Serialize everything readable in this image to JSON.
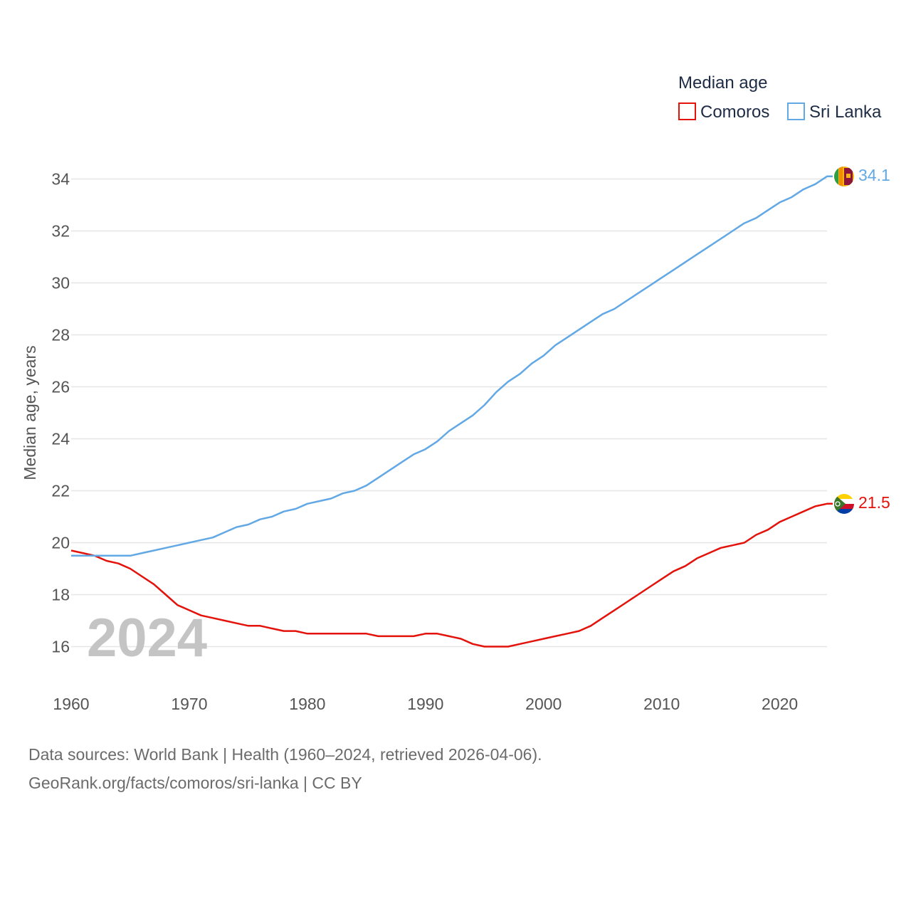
{
  "chart_data": {
    "type": "line",
    "title": "Median age",
    "ylabel": "Median age, years",
    "xlabel": "",
    "xlim": [
      1960,
      2024
    ],
    "ylim": [
      15,
      35
    ],
    "y_ticks": [
      16,
      18,
      20,
      22,
      24,
      26,
      28,
      30,
      32,
      34
    ],
    "x_ticks": [
      1960,
      1970,
      1980,
      1990,
      2000,
      2010,
      2020
    ],
    "grid": true,
    "legend_position": "top-right",
    "current_year_label": "2024",
    "x": [
      1960,
      1961,
      1962,
      1963,
      1964,
      1965,
      1966,
      1967,
      1968,
      1969,
      1970,
      1971,
      1972,
      1973,
      1974,
      1975,
      1976,
      1977,
      1978,
      1979,
      1980,
      1981,
      1982,
      1983,
      1984,
      1985,
      1986,
      1987,
      1988,
      1989,
      1990,
      1991,
      1992,
      1993,
      1994,
      1995,
      1996,
      1997,
      1998,
      1999,
      2000,
      2001,
      2002,
      2003,
      2004,
      2005,
      2006,
      2007,
      2008,
      2009,
      2010,
      2011,
      2012,
      2013,
      2014,
      2015,
      2016,
      2017,
      2018,
      2019,
      2020,
      2021,
      2022,
      2023,
      2024
    ],
    "series": [
      {
        "name": "Comoros",
        "color": "#e3120b",
        "end_label": "21.5",
        "flag": "comoros-flag",
        "values": [
          19.7,
          19.6,
          19.5,
          19.3,
          19.2,
          19.0,
          18.7,
          18.4,
          18.0,
          17.6,
          17.4,
          17.2,
          17.1,
          17.0,
          16.9,
          16.8,
          16.8,
          16.7,
          16.6,
          16.6,
          16.5,
          16.5,
          16.5,
          16.5,
          16.5,
          16.5,
          16.4,
          16.4,
          16.4,
          16.4,
          16.5,
          16.5,
          16.4,
          16.3,
          16.1,
          16.0,
          16.0,
          16.0,
          16.1,
          16.2,
          16.3,
          16.4,
          16.5,
          16.6,
          16.8,
          17.1,
          17.4,
          17.7,
          18.0,
          18.3,
          18.6,
          18.9,
          19.1,
          19.4,
          19.6,
          19.8,
          19.9,
          20.0,
          20.3,
          20.5,
          20.8,
          21.0,
          21.2,
          21.4,
          21.5
        ]
      },
      {
        "name": "Sri Lanka",
        "color": "#62a8e5",
        "end_label": "34.1",
        "flag": "sri-lanka-flag",
        "values": [
          19.5,
          19.5,
          19.5,
          19.5,
          19.5,
          19.5,
          19.6,
          19.7,
          19.8,
          19.9,
          20.0,
          20.1,
          20.2,
          20.4,
          20.6,
          20.7,
          20.9,
          21.0,
          21.2,
          21.3,
          21.5,
          21.6,
          21.7,
          21.9,
          22.0,
          22.2,
          22.5,
          22.8,
          23.1,
          23.4,
          23.6,
          23.9,
          24.3,
          24.6,
          24.9,
          25.3,
          25.8,
          26.2,
          26.5,
          26.9,
          27.2,
          27.6,
          27.9,
          28.2,
          28.5,
          28.8,
          29.0,
          29.3,
          29.6,
          29.9,
          30.2,
          30.5,
          30.8,
          31.1,
          31.4,
          31.7,
          32.0,
          32.3,
          32.5,
          32.8,
          33.1,
          33.3,
          33.6,
          33.8,
          34.1
        ]
      }
    ]
  },
  "footer": {
    "line1": "Data sources: World Bank | Health (1960–2024, retrieved 2026-04-06).",
    "line2": "GeoRank.org/facts/comoros/sri-lanka | CC BY"
  }
}
